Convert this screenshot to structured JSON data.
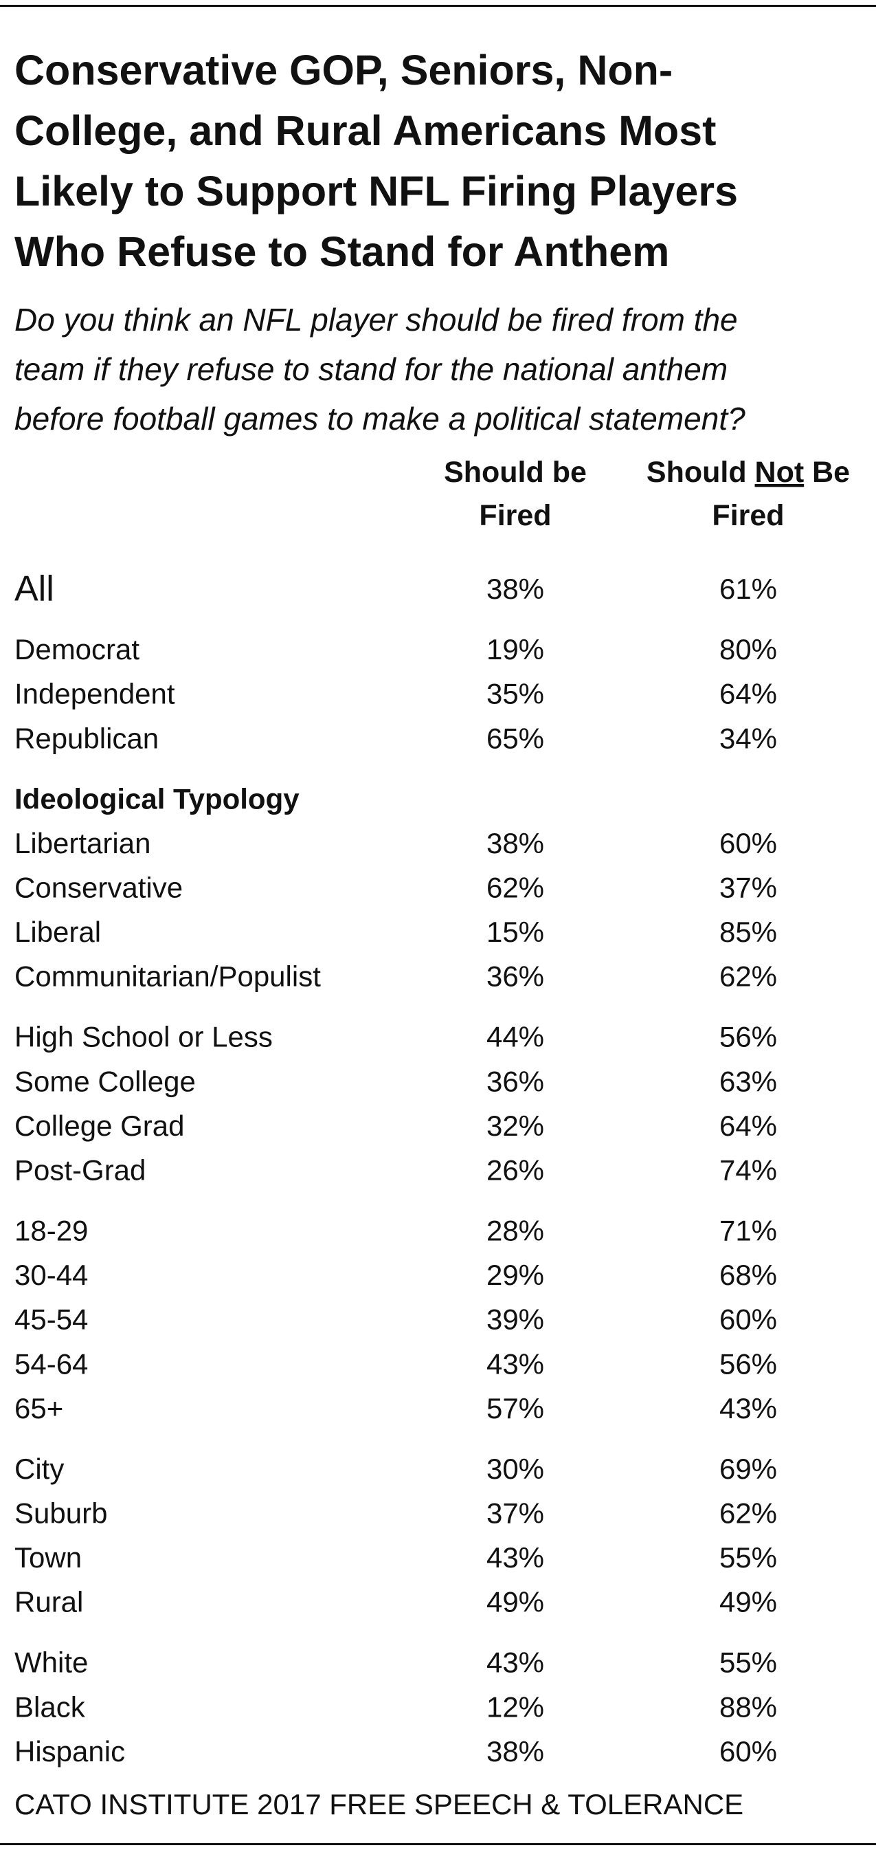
{
  "header": {
    "title_lines": [
      "Conservative GOP, Seniors, Non-",
      "College, and Rural Americans Most",
      "Likely to Support NFL Firing Players",
      "Who Refuse to Stand for Anthem"
    ],
    "subtitle_lines": [
      "Do you think an NFL player should be fired from the",
      "team if they refuse to stand for the national anthem",
      "before football games to make a political statement?"
    ]
  },
  "table": {
    "columns": [
      {
        "lines": [
          [
            "Should be"
          ],
          [
            "Fired"
          ]
        ]
      },
      {
        "lines": [
          [
            "Should ",
            "Not",
            " Be"
          ],
          [
            "Fired"
          ]
        ],
        "underlined_part": 1
      }
    ],
    "groups": [
      {
        "emphasis": true,
        "rows": [
          [
            "All",
            "38%",
            "61%"
          ]
        ]
      },
      {
        "rows": [
          [
            "Democrat",
            "19%",
            "80%"
          ],
          [
            "Independent",
            "35%",
            "64%"
          ],
          [
            "Republican",
            "65%",
            "34%"
          ]
        ]
      },
      {
        "heading": "Ideological Typology",
        "rows": [
          [
            "Libertarian",
            "38%",
            "60%"
          ],
          [
            "Conservative",
            "62%",
            "37%"
          ],
          [
            "Liberal",
            "15%",
            "85%"
          ],
          [
            "Communitarian/Populist",
            "36%",
            "62%"
          ]
        ]
      },
      {
        "rows": [
          [
            "High School or Less",
            "44%",
            "56%"
          ],
          [
            "Some College",
            "36%",
            "63%"
          ],
          [
            "College Grad",
            "32%",
            "64%"
          ],
          [
            "Post-Grad",
            "26%",
            "74%"
          ]
        ]
      },
      {
        "rows": [
          [
            "18-29",
            "28%",
            "71%"
          ],
          [
            "30-44",
            "29%",
            "68%"
          ],
          [
            "45-54",
            "39%",
            "60%"
          ],
          [
            "54-64",
            "43%",
            "56%"
          ],
          [
            "65+",
            "57%",
            "43%"
          ]
        ]
      },
      {
        "rows": [
          [
            "City",
            "30%",
            "69%"
          ],
          [
            "Suburb",
            "37%",
            "62%"
          ],
          [
            "Town",
            "43%",
            "55%"
          ],
          [
            "Rural",
            "49%",
            "49%"
          ]
        ]
      },
      {
        "rows": [
          [
            "White",
            "43%",
            "55%"
          ],
          [
            "Black",
            "12%",
            "88%"
          ],
          [
            "Hispanic",
            "38%",
            "60%"
          ]
        ]
      }
    ]
  },
  "footer": {
    "source": "CATO INSTITUTE 2017 FREE SPEECH & TOLERANCE"
  }
}
